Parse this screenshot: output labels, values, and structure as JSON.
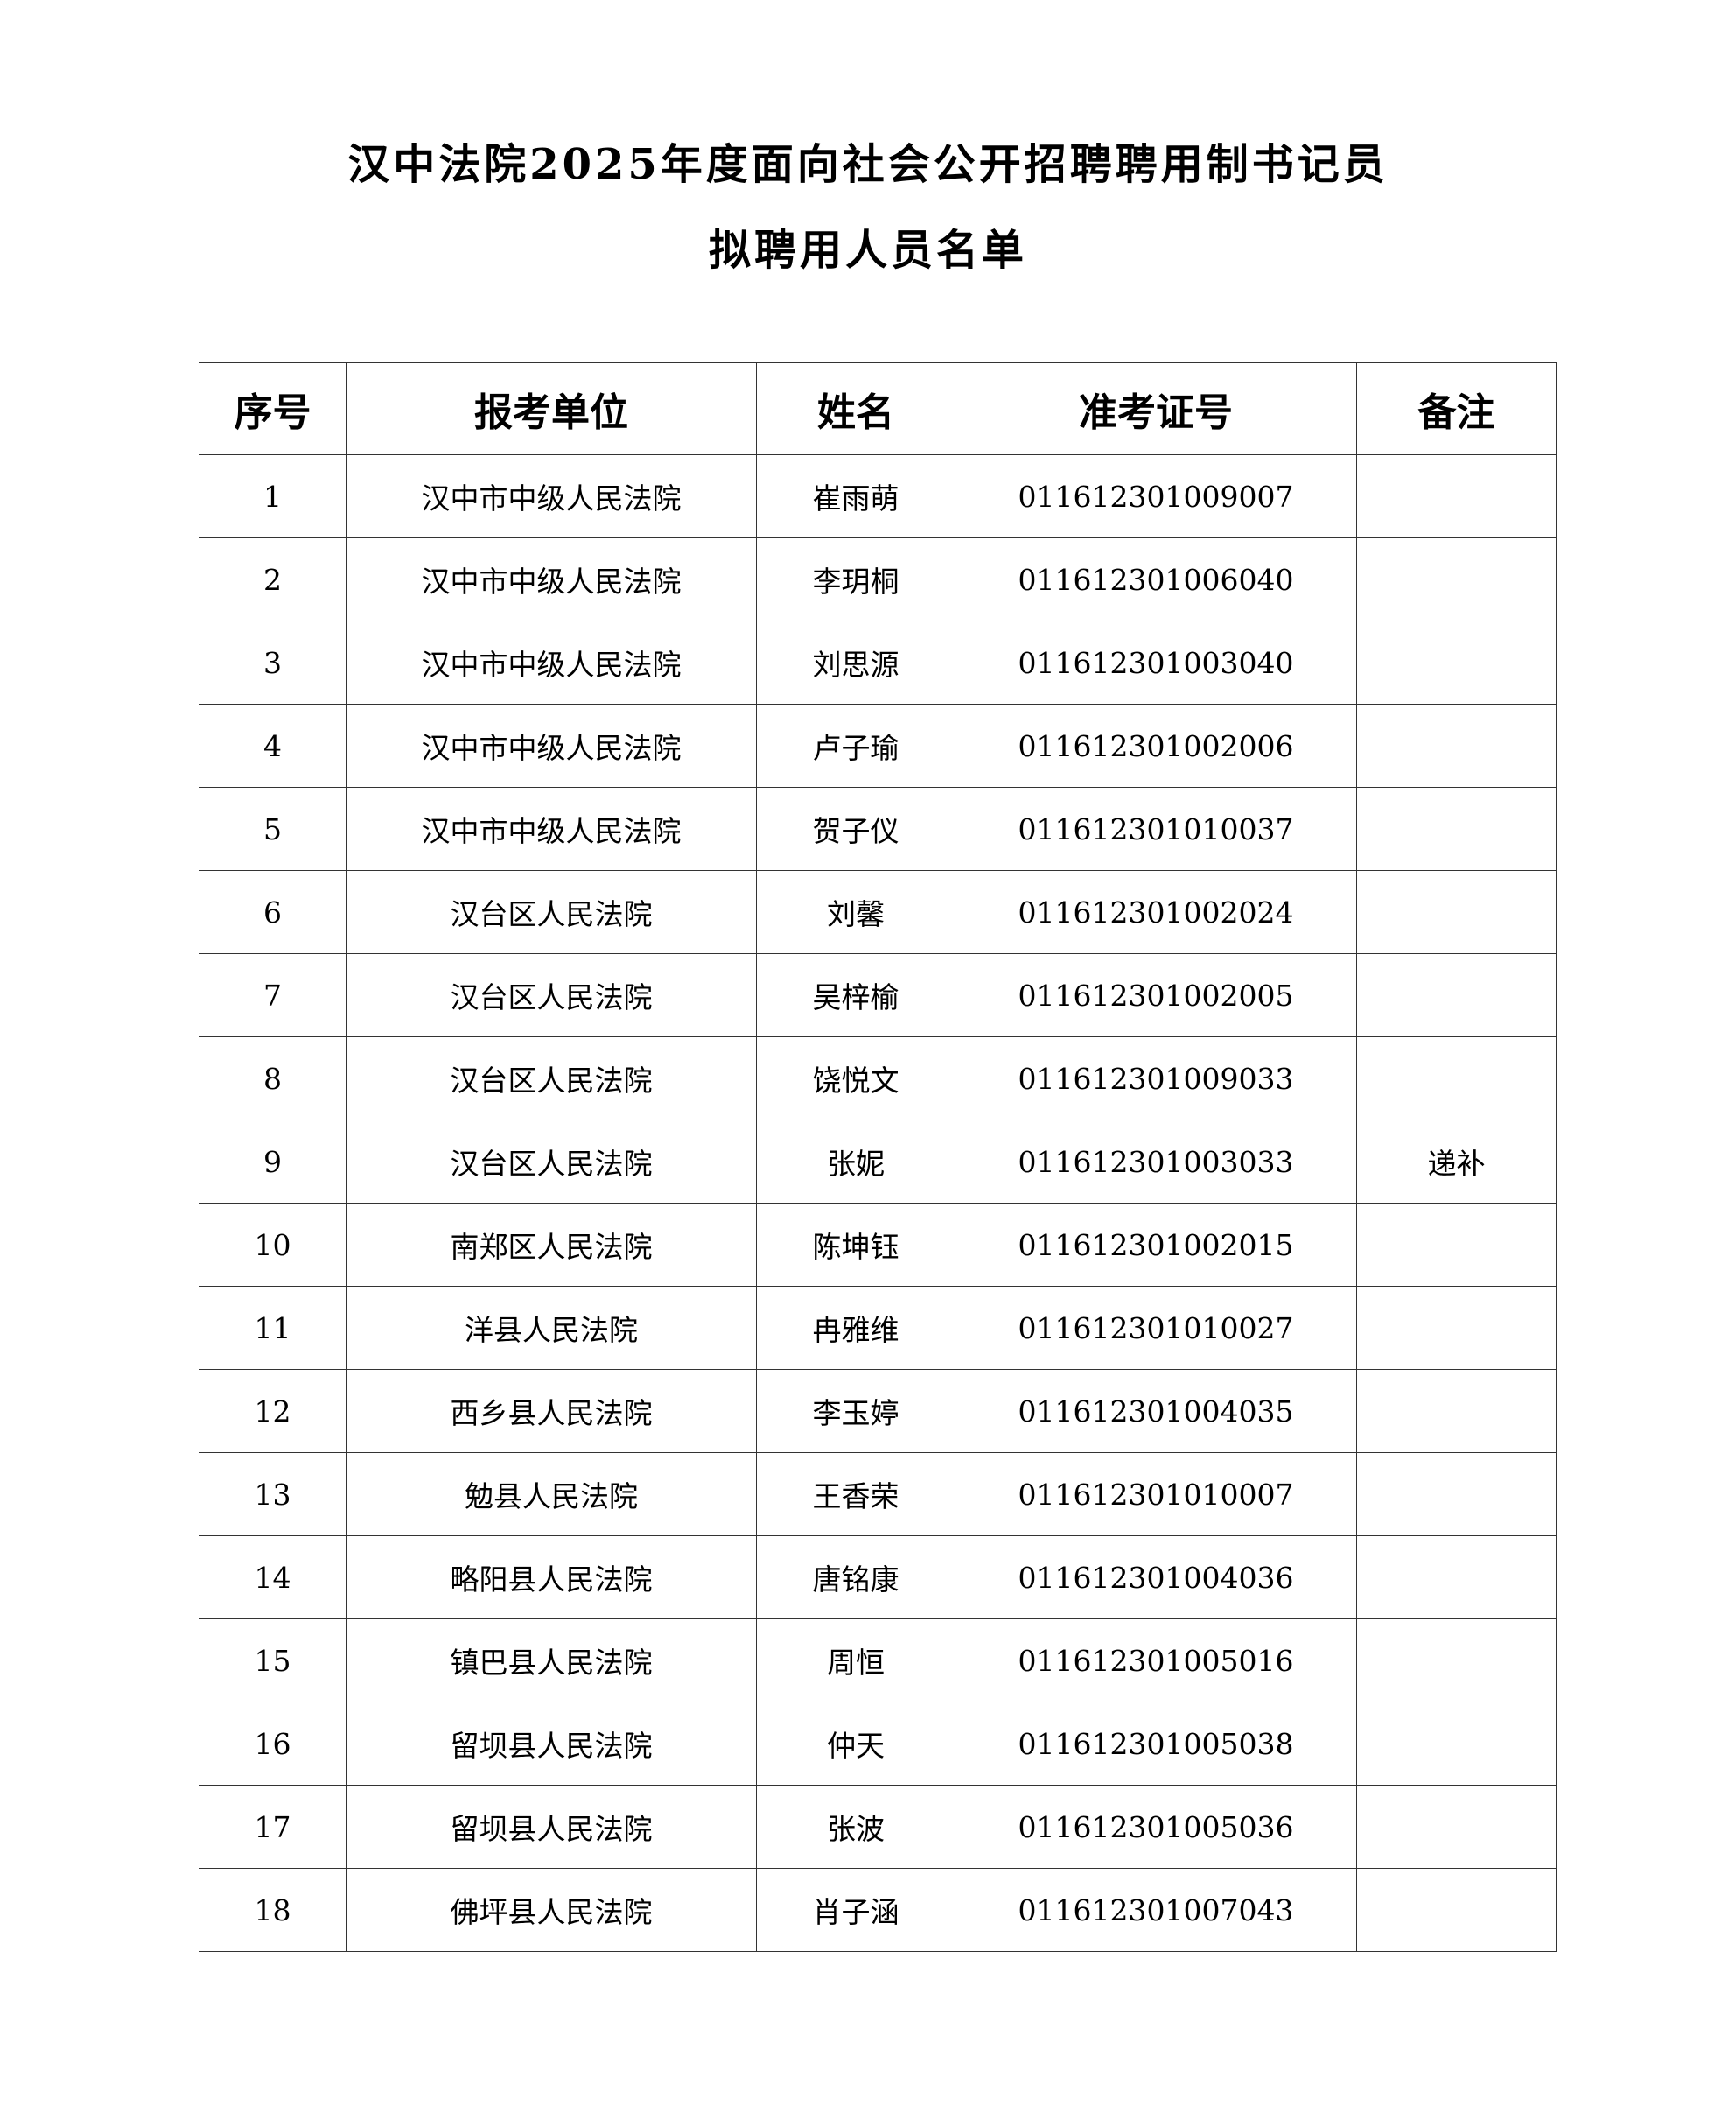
{
  "title": {
    "line1": "汉中法院2025年度面向社会公开招聘聘用制书记员",
    "line2": "拟聘用人员名单"
  },
  "table": {
    "headers": [
      "序号",
      "报考单位",
      "姓名",
      "准考证号",
      "备注"
    ],
    "rows": [
      [
        "1",
        "汉中市中级人民法院",
        "崔雨萌",
        "011612301009007",
        ""
      ],
      [
        "2",
        "汉中市中级人民法院",
        "李玥桐",
        "011612301006040",
        ""
      ],
      [
        "3",
        "汉中市中级人民法院",
        "刘思源",
        "011612301003040",
        ""
      ],
      [
        "4",
        "汉中市中级人民法院",
        "卢子瑜",
        "011612301002006",
        ""
      ],
      [
        "5",
        "汉中市中级人民法院",
        "贺子仪",
        "011612301010037",
        ""
      ],
      [
        "6",
        "汉台区人民法院",
        "刘馨",
        "011612301002024",
        ""
      ],
      [
        "7",
        "汉台区人民法院",
        "吴梓榆",
        "011612301002005",
        ""
      ],
      [
        "8",
        "汉台区人民法院",
        "饶悦文",
        "011612301009033",
        ""
      ],
      [
        "9",
        "汉台区人民法院",
        "张妮",
        "011612301003033",
        "递补"
      ],
      [
        "10",
        "南郑区人民法院",
        "陈坤钰",
        "011612301002015",
        ""
      ],
      [
        "11",
        "洋县人民法院",
        "冉雅维",
        "011612301010027",
        ""
      ],
      [
        "12",
        "西乡县人民法院",
        "李玉婷",
        "011612301004035",
        ""
      ],
      [
        "13",
        "勉县人民法院",
        "王香荣",
        "011612301010007",
        ""
      ],
      [
        "14",
        "略阳县人民法院",
        "唐铭康",
        "011612301004036",
        ""
      ],
      [
        "15",
        "镇巴县人民法院",
        "周恒",
        "011612301005016",
        ""
      ],
      [
        "16",
        "留坝县人民法院",
        "仲天",
        "011612301005038",
        ""
      ],
      [
        "17",
        "留坝县人民法院",
        "张波",
        "011612301005036",
        ""
      ],
      [
        "18",
        "佛坪县人民法院",
        "肖子涵",
        "011612301007043",
        ""
      ]
    ]
  }
}
